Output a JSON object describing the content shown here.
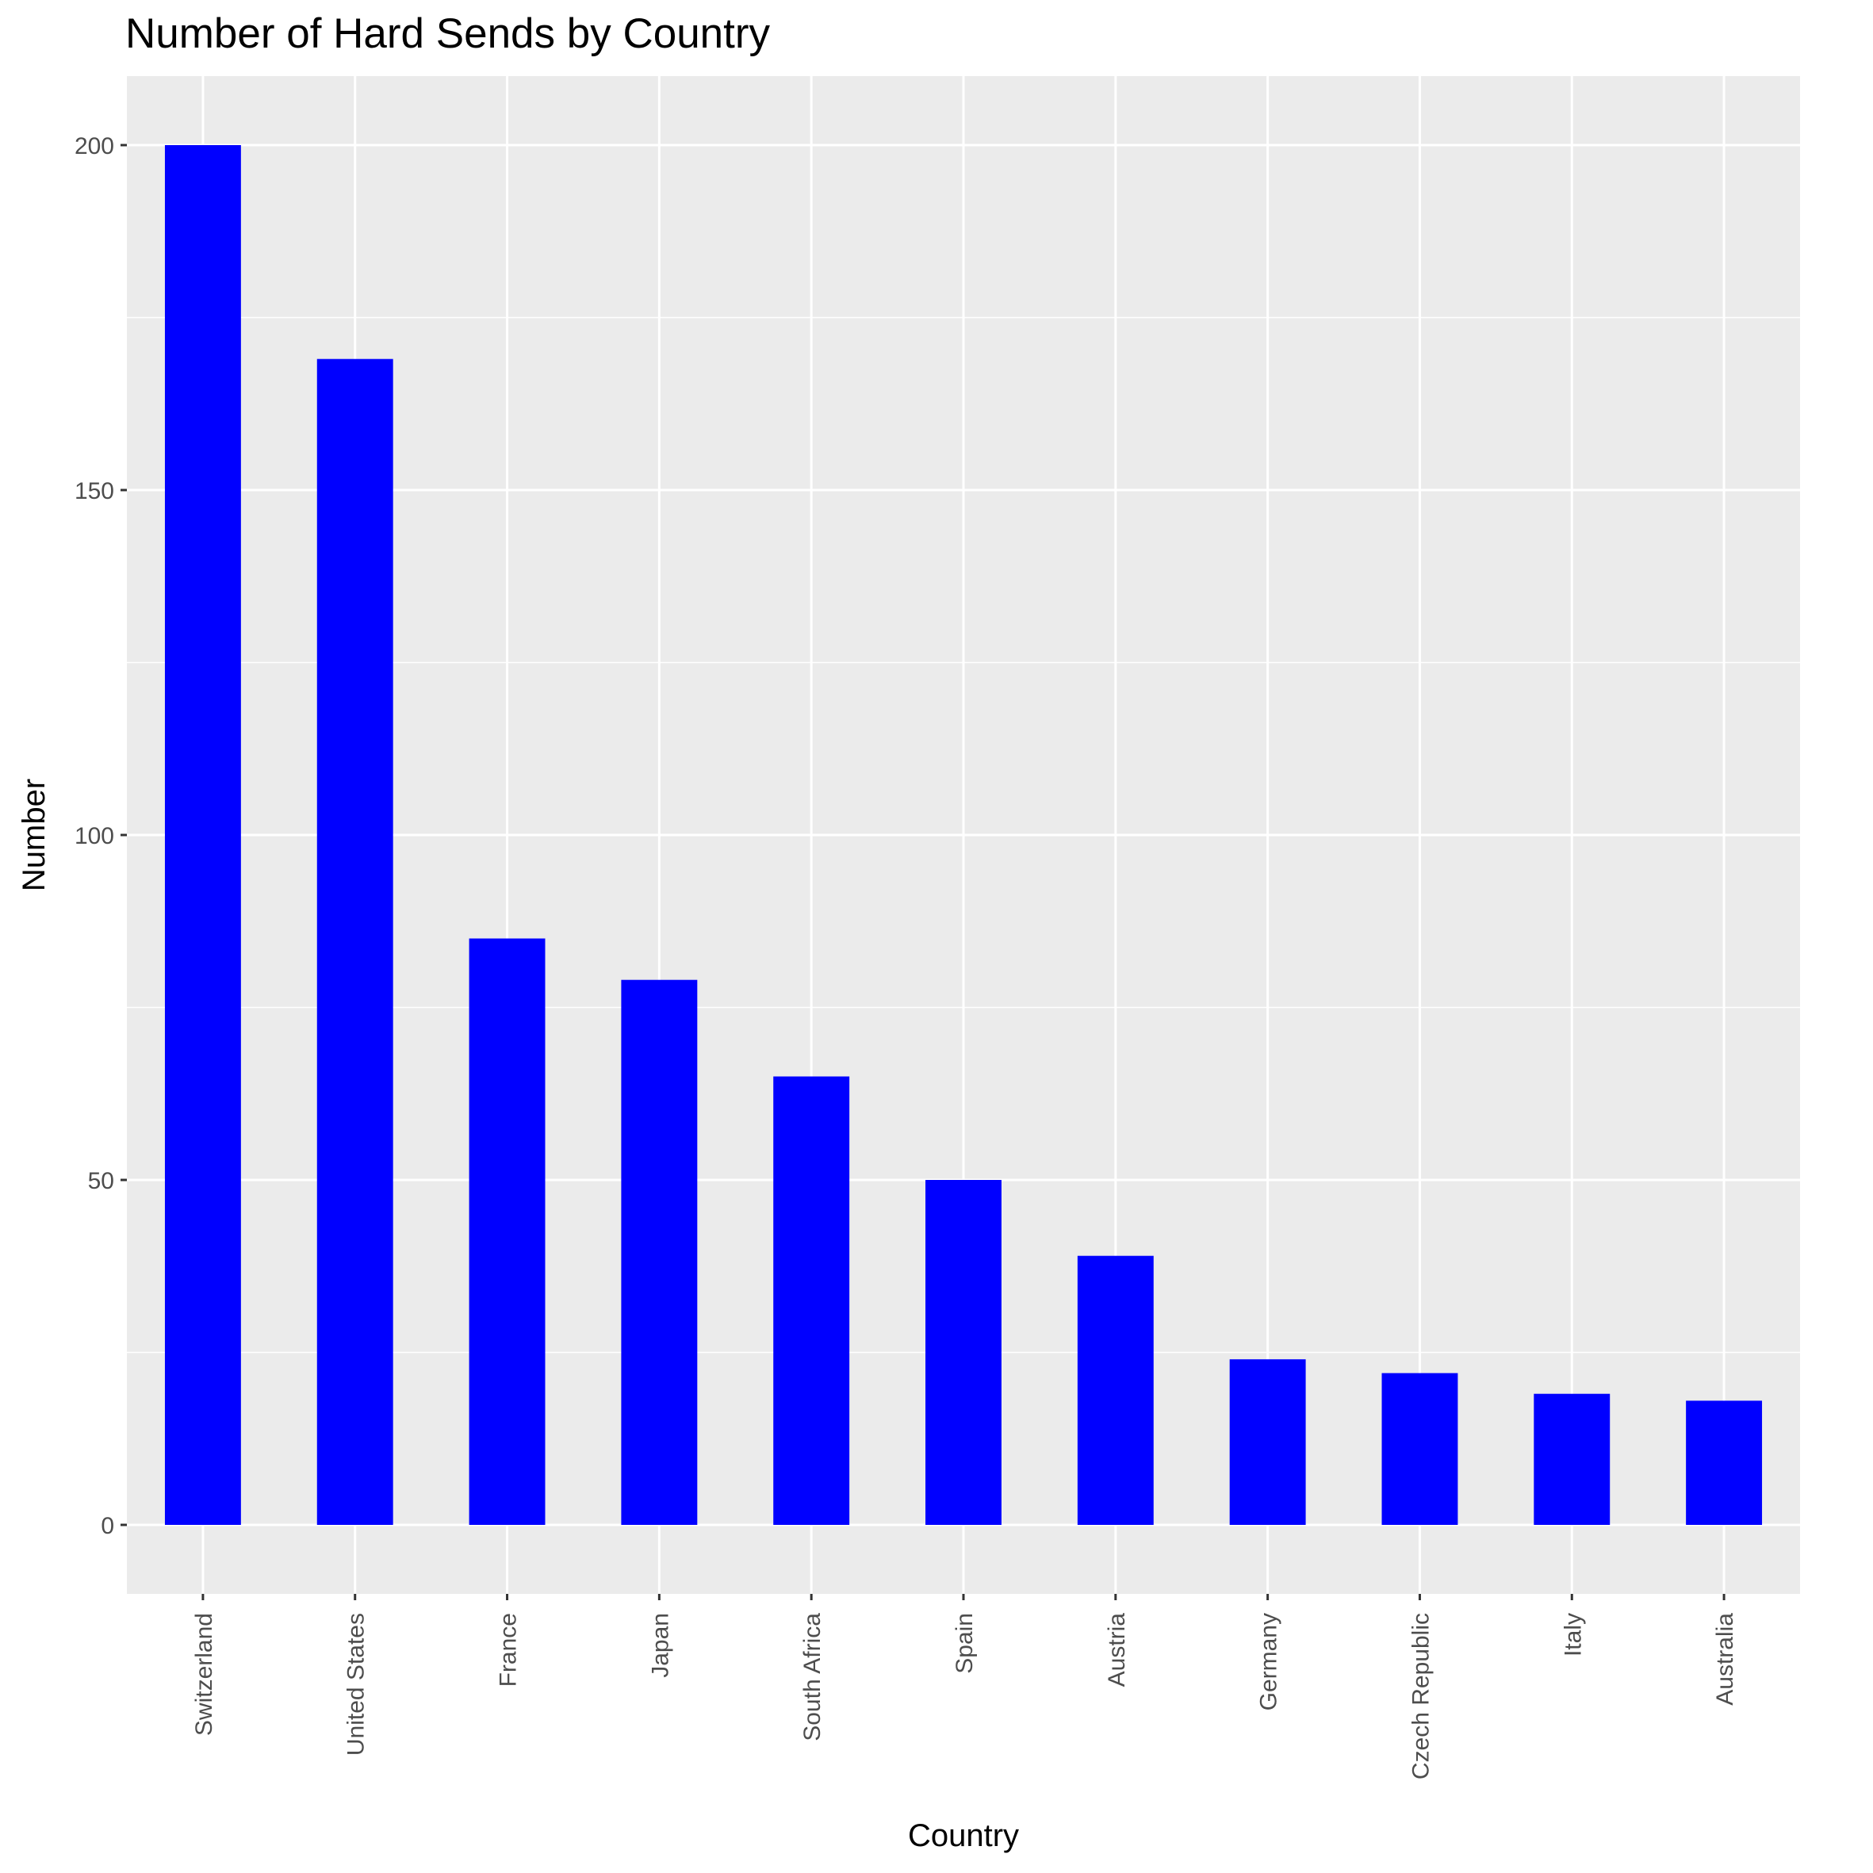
{
  "chart_data": {
    "type": "bar",
    "title": "Number of Hard Sends by Country",
    "xlabel": "Country",
    "ylabel": "Number",
    "categories": [
      "Switzerland",
      "United States",
      "France",
      "Japan",
      "South Africa",
      "Spain",
      "Austria",
      "Germany",
      "Czech Republic",
      "Italy",
      "Australia"
    ],
    "values": [
      200,
      169,
      85,
      79,
      65,
      50,
      39,
      24,
      22,
      19,
      18
    ],
    "ylim": [
      -10,
      210
    ],
    "yticks": [
      0,
      50,
      100,
      150,
      200
    ],
    "grid": true,
    "colors": {
      "bar": "#0000FF",
      "panel": "#EBEBEB",
      "grid": "#FFFFFF"
    }
  }
}
